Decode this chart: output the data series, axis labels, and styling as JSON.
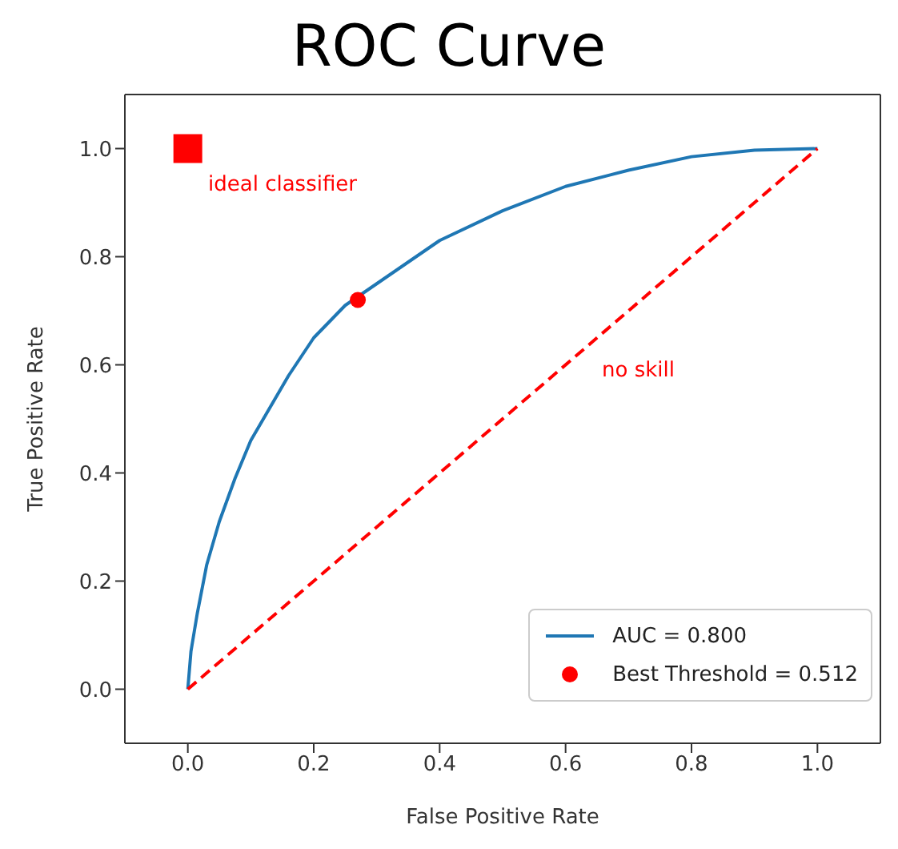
{
  "chart_data": {
    "type": "line",
    "title": "ROC Curve",
    "xlabel": "False Positive Rate",
    "ylabel": "True Positive Rate",
    "xlim": [
      -0.1,
      1.1
    ],
    "ylim": [
      -0.1,
      1.1
    ],
    "xticks": [
      {
        "value": 0,
        "label": "0.0"
      },
      {
        "value": 0.2,
        "label": "0.2"
      },
      {
        "value": 0.4,
        "label": "0.4"
      },
      {
        "value": 0.6,
        "label": "0.6"
      },
      {
        "value": 0.8,
        "label": "0.8"
      },
      {
        "value": 1,
        "label": "1.0"
      }
    ],
    "yticks": [
      {
        "value": 0,
        "label": "0.0"
      },
      {
        "value": 0.2,
        "label": "0.2"
      },
      {
        "value": 0.4,
        "label": "0.4"
      },
      {
        "value": 0.6,
        "label": "0.6"
      },
      {
        "value": 0.8,
        "label": "0.8"
      },
      {
        "value": 1,
        "label": "1.0"
      }
    ],
    "grid": false,
    "legend": "bottom right",
    "series": [
      {
        "name": "AUC = 0.800",
        "color": "#1f77b4",
        "marker": "none",
        "line_style": "solid",
        "x": [
          0,
          0.005,
          0.015,
          0.03,
          0.05,
          0.075,
          0.1,
          0.13,
          0.16,
          0.2,
          0.25,
          0.3,
          0.35,
          0.4,
          0.5,
          0.6,
          0.7,
          0.8,
          0.9,
          1
        ],
        "values": [
          0,
          0.07,
          0.14,
          0.23,
          0.31,
          0.39,
          0.46,
          0.52,
          0.58,
          0.65,
          0.71,
          0.75,
          0.79,
          0.83,
          0.885,
          0.93,
          0.96,
          0.985,
          0.997,
          1
        ]
      },
      {
        "color": "#ff0000",
        "marker": "none",
        "line_style": "dashed",
        "x": [
          0,
          1
        ],
        "values": [
          0,
          1
        ]
      },
      {
        "type": "scatter",
        "color": "#ff0000",
        "marker": "square",
        "x": [
          0
        ],
        "values": [
          1
        ]
      },
      {
        "name": "Best Threshold = 0.512",
        "type": "scatter",
        "color": "#ff0000",
        "marker": "circle",
        "x": [
          0.27
        ],
        "values": [
          0.72
        ]
      }
    ],
    "annotations": [
      "ideal classifier",
      "no skill"
    ]
  }
}
